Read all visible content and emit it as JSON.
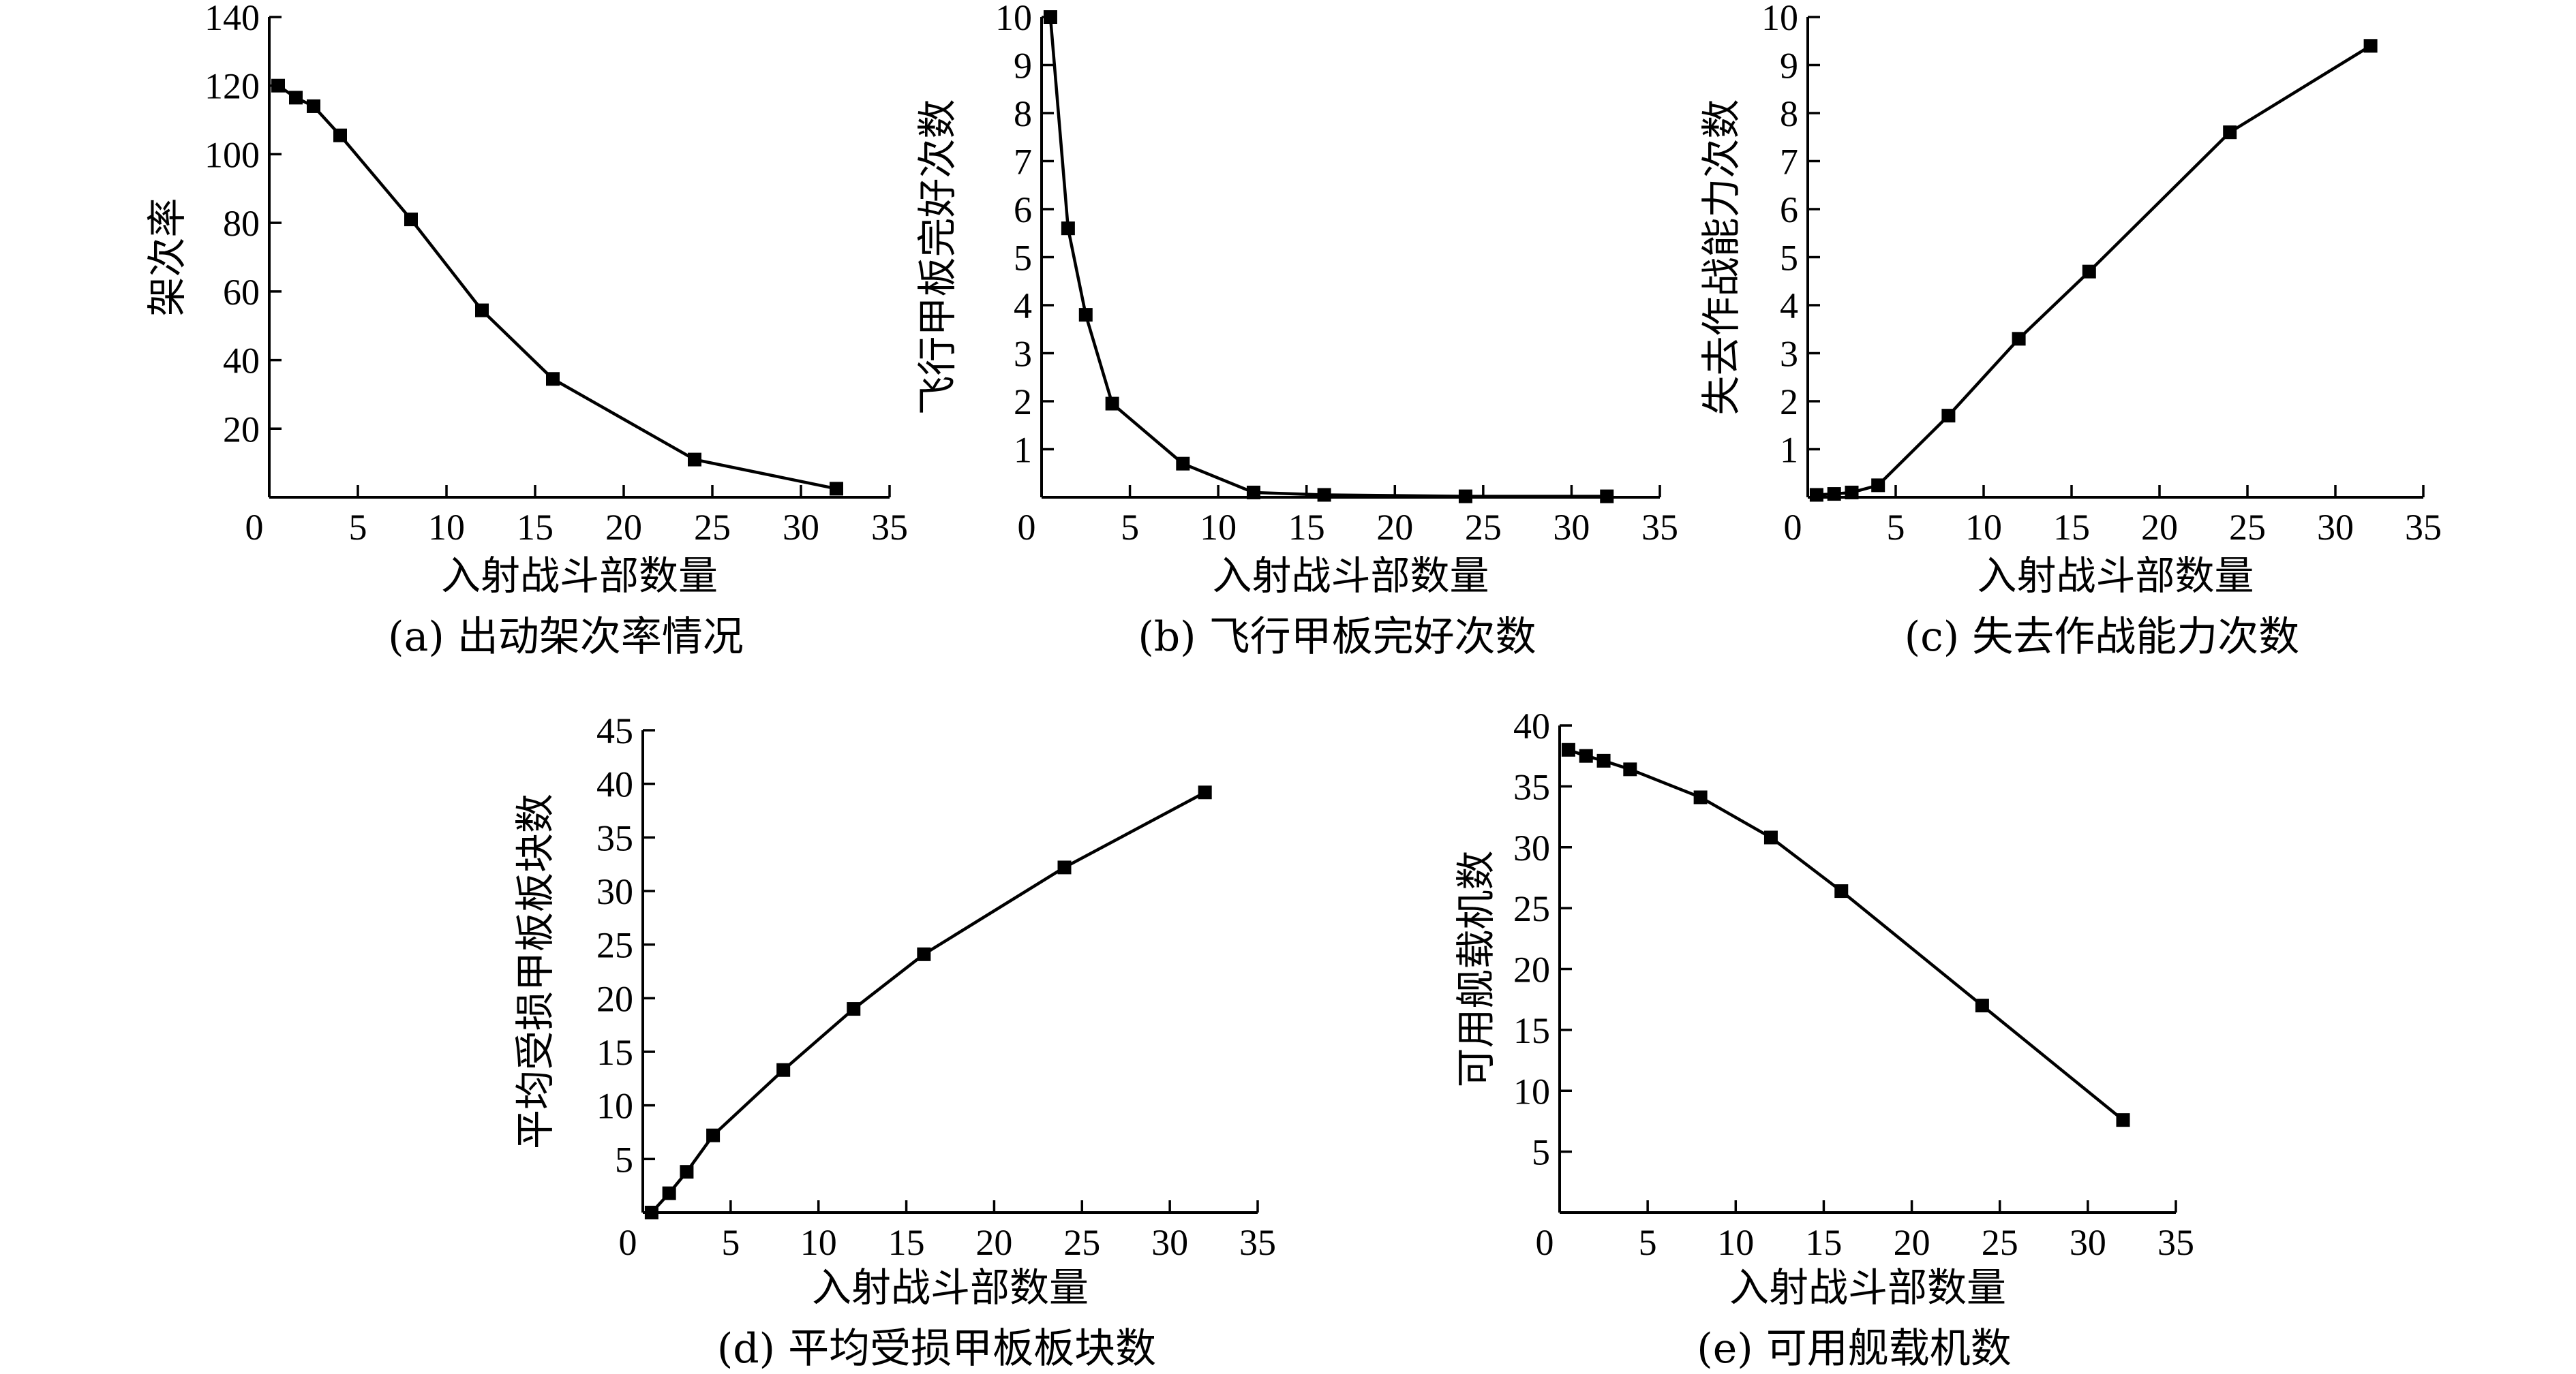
{
  "chart_data": [
    {
      "id": "a",
      "type": "line",
      "caption": "(a) 出动架次率情况",
      "xlabel": "入射战斗部数量",
      "ylabel": "架次率",
      "xlim": [
        0,
        35
      ],
      "ylim": [
        0,
        140
      ],
      "xticks": [
        0,
        5,
        10,
        15,
        20,
        25,
        30,
        35
      ],
      "yticks": [
        20,
        40,
        60,
        80,
        100,
        120,
        140
      ],
      "series": [
        {
          "x": [
            0.5,
            1.5,
            2.5,
            4,
            8,
            12,
            16,
            24,
            32
          ],
          "y": [
            120,
            116.5,
            114,
            105.5,
            81,
            54.5,
            34.5,
            11,
            2.5
          ]
        }
      ]
    },
    {
      "id": "b",
      "type": "line",
      "caption": "(b) 飞行甲板完好次数",
      "xlabel": "入射战斗部数量",
      "ylabel": "飞行甲板完好次数",
      "xlim": [
        0,
        35
      ],
      "ylim": [
        0,
        10
      ],
      "xticks": [
        0,
        5,
        10,
        15,
        20,
        25,
        30,
        35
      ],
      "yticks": [
        1,
        2,
        3,
        4,
        5,
        6,
        7,
        8,
        9,
        10
      ],
      "series": [
        {
          "x": [
            0.5,
            1.5,
            2.5,
            4,
            8,
            12,
            16,
            24,
            32
          ],
          "y": [
            10,
            5.6,
            3.8,
            1.95,
            0.7,
            0.1,
            0.05,
            0.02,
            0.02
          ]
        }
      ]
    },
    {
      "id": "c",
      "type": "line",
      "caption": "(c) 失去作战能力次数",
      "xlabel": "入射战斗部数量",
      "ylabel": "失去作战能力次数",
      "xlim": [
        0,
        35
      ],
      "ylim": [
        0,
        10
      ],
      "xticks": [
        0,
        5,
        10,
        15,
        20,
        25,
        30,
        35
      ],
      "yticks": [
        1,
        2,
        3,
        4,
        5,
        6,
        7,
        8,
        9,
        10
      ],
      "series": [
        {
          "x": [
            0.5,
            1.5,
            2.5,
            4,
            8,
            12,
            16,
            24,
            32
          ],
          "y": [
            0.05,
            0.07,
            0.1,
            0.25,
            1.7,
            3.3,
            4.7,
            7.6,
            9.4
          ]
        }
      ]
    },
    {
      "id": "d",
      "type": "line",
      "caption": "(d) 平均受损甲板板块数",
      "xlabel": "入射战斗部数量",
      "ylabel": "平均受损甲板板块数",
      "xlim": [
        0,
        35
      ],
      "ylim": [
        0,
        45
      ],
      "xticks": [
        0,
        5,
        10,
        15,
        20,
        25,
        30,
        35
      ],
      "yticks": [
        5,
        10,
        15,
        20,
        25,
        30,
        35,
        40,
        45
      ],
      "series": [
        {
          "x": [
            0.5,
            1.5,
            2.5,
            4,
            8,
            12,
            16,
            24,
            32
          ],
          "y": [
            0,
            1.8,
            3.8,
            7.2,
            13.3,
            19,
            24.1,
            32.2,
            39.2
          ]
        }
      ]
    },
    {
      "id": "e",
      "type": "line",
      "caption": "(e) 可用舰载机数",
      "xlabel": "入射战斗部数量",
      "ylabel": "可用舰载机数",
      "xlim": [
        0,
        35
      ],
      "ylim": [
        0,
        40
      ],
      "xticks": [
        0,
        5,
        10,
        15,
        20,
        25,
        30,
        35
      ],
      "yticks": [
        5,
        10,
        15,
        20,
        25,
        30,
        35,
        40
      ],
      "series": [
        {
          "x": [
            0.5,
            1.5,
            2.5,
            4,
            8,
            12,
            16,
            24,
            32
          ],
          "y": [
            38,
            37.5,
            37.1,
            36.4,
            34.1,
            30.8,
            26.4,
            17,
            7.6
          ]
        }
      ]
    }
  ]
}
